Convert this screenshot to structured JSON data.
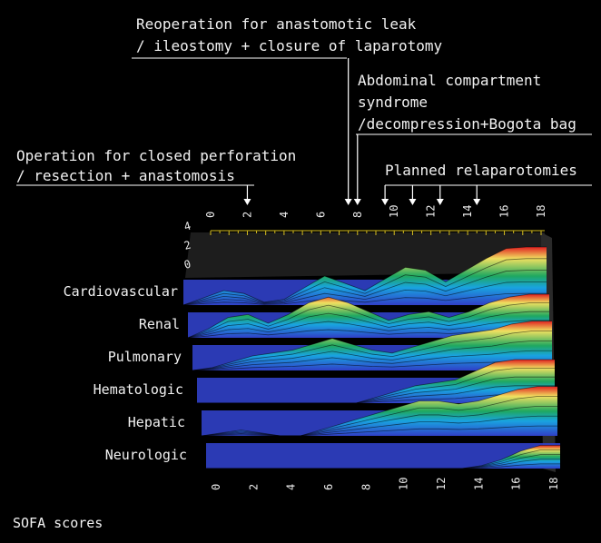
{
  "annotations": [
    {
      "id": "op1",
      "lines": [
        "Operation for closed perforation",
        "/ resection + anastomosis"
      ],
      "day": 2
    },
    {
      "id": "op2",
      "lines": [
        "Reoperation for anastomotic leak",
        "/ ileostomy + closure of laparotomy"
      ],
      "day": 7.5
    },
    {
      "id": "op3",
      "lines": [
        "Abdominal compartment",
        "syndrome",
        "/decompression+Bogota bag"
      ],
      "day": 8
    },
    {
      "id": "op4",
      "lines": [
        "Planned relaparotomies"
      ],
      "days": [
        9.5,
        11,
        12.5,
        14.5
      ]
    }
  ],
  "footer_label": "SOFA scores",
  "chart_data": {
    "type": "area",
    "title": "",
    "xlabel": "",
    "ylabel": "",
    "x_ticks": [
      0,
      2,
      4,
      6,
      8,
      10,
      12,
      14,
      16,
      18
    ],
    "z_ticks": [
      4,
      2,
      0
    ],
    "xlim": [
      0,
      18
    ],
    "zlim": [
      0,
      4
    ],
    "x": [
      0,
      1,
      2,
      3,
      4,
      5,
      6,
      7,
      8,
      9,
      10,
      11,
      12,
      13,
      14,
      15,
      16,
      17,
      18
    ],
    "series": [
      {
        "name": "Cardiovascular",
        "values": [
          0,
          0.5,
          1,
          0.8,
          0.2,
          0.4,
          1.2,
          2,
          1.5,
          1,
          1.8,
          2.6,
          2.4,
          1.6,
          2.4,
          3.2,
          3.9,
          4,
          4
        ]
      },
      {
        "name": "Renal",
        "values": [
          0,
          0.6,
          1.4,
          1.6,
          1,
          1.6,
          2.4,
          2.8,
          2.4,
          1.8,
          1.2,
          1.6,
          1.8,
          1.4,
          1.8,
          2.4,
          2.8,
          3,
          3
        ]
      },
      {
        "name": "Pulmonary",
        "values": [
          0,
          0.2,
          0.6,
          1,
          1.2,
          1.4,
          1.8,
          2.2,
          1.8,
          1.4,
          1.2,
          1.6,
          2,
          2.4,
          2.6,
          2.8,
          3.2,
          3.4,
          3.4
        ]
      },
      {
        "name": "Hematologic",
        "values": [
          0,
          0,
          0,
          0,
          0,
          0,
          0,
          0,
          0,
          0.4,
          0.8,
          1.2,
          1.4,
          1.6,
          2.2,
          2.8,
          3,
          3,
          3
        ]
      },
      {
        "name": "Hepatic",
        "values": [
          0,
          0.2,
          0.4,
          0.2,
          0,
          0,
          0.4,
          0.8,
          1.2,
          1.6,
          2,
          2.4,
          2.4,
          2.2,
          2.4,
          2.8,
          3.2,
          3.4,
          3.4
        ]
      },
      {
        "name": "Neurologic",
        "values": [
          0,
          0,
          0,
          0,
          0,
          0,
          0,
          0,
          0,
          0,
          0,
          0,
          0,
          0,
          0.2,
          0.6,
          1.2,
          1.6,
          1.6
        ]
      }
    ],
    "colors": {
      "low": "#3040c8",
      "mid": "#19a3e0",
      "green": "#1fa860",
      "high": "#f0e060",
      "max": "#e02020"
    },
    "grid": false,
    "legend": "none"
  }
}
